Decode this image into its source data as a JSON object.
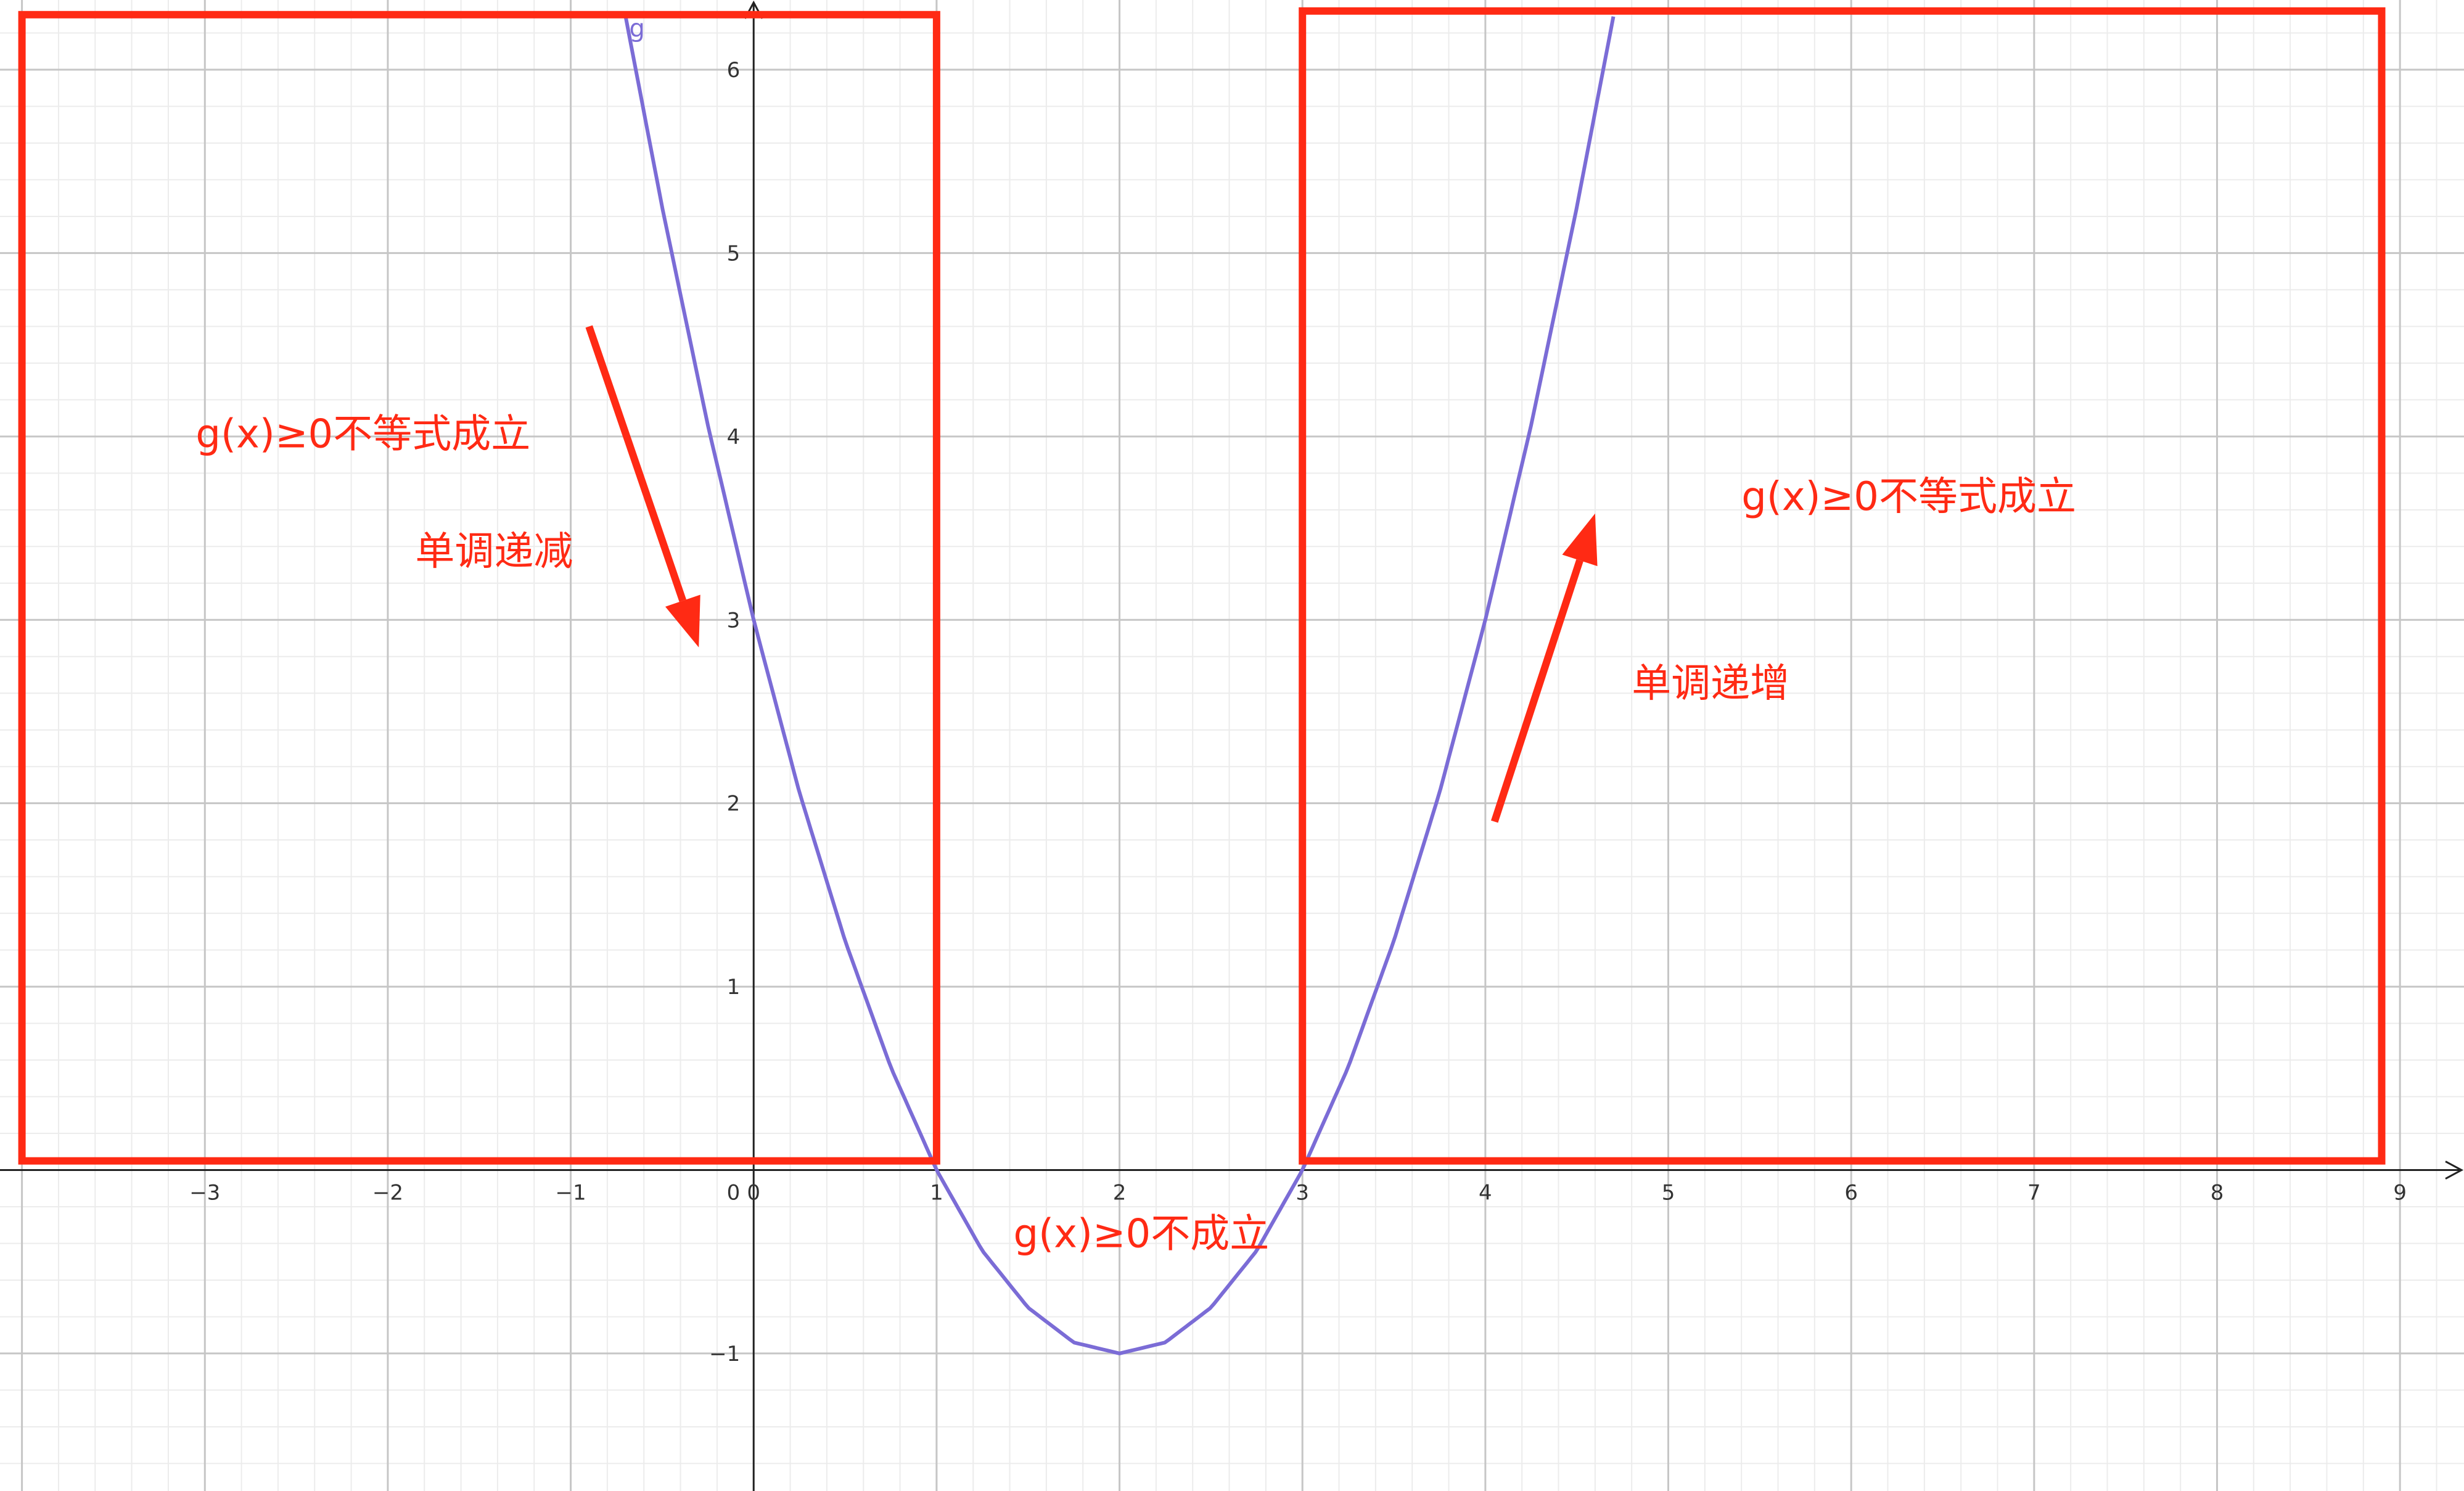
{
  "chart_data": {
    "type": "line",
    "title": "",
    "xlabel": "",
    "ylabel": "",
    "xlim": [
      -4.12,
      9.35
    ],
    "ylim": [
      -1.75,
      6.38
    ],
    "grid": true,
    "x_ticks": [
      -3,
      -2,
      -1,
      0,
      1,
      2,
      3,
      4,
      5,
      6,
      7,
      8,
      9
    ],
    "y_ticks": [
      -1,
      1,
      2,
      3,
      4,
      5,
      6
    ],
    "origin_label": "0",
    "series": [
      {
        "name": "g",
        "color": "#7b6cd6",
        "x": [
          -0.7,
          -0.5,
          -0.25,
          0,
          0.25,
          0.5,
          0.75,
          1,
          1.25,
          1.5,
          1.75,
          2,
          2.25,
          2.5,
          2.75,
          3,
          3.25,
          3.5,
          3.75,
          4,
          4.25,
          4.5,
          4.7
        ],
        "y": [
          6.29,
          5.25,
          4.06,
          3,
          2.06,
          1.25,
          0.56,
          0,
          -0.44,
          -0.75,
          -0.94,
          -1,
          -0.94,
          -0.75,
          -0.44,
          0,
          0.56,
          1.25,
          2.06,
          3,
          4.06,
          5.25,
          6.29
        ]
      }
    ],
    "regions": [
      {
        "name": "left-true-region",
        "x": [
          -4.0,
          1.0
        ],
        "y": [
          0.05,
          6.3
        ],
        "color": "#ff2a14"
      },
      {
        "name": "right-true-region",
        "x": [
          3.0,
          8.9
        ],
        "y": [
          0.05,
          6.32
        ],
        "color": "#ff2a14"
      }
    ],
    "arrows": [
      {
        "name": "decreasing-arrow",
        "from": [
          -0.9,
          4.6
        ],
        "to": [
          -0.3,
          2.85
        ],
        "color": "#ff2a14"
      },
      {
        "name": "increasing-arrow",
        "from": [
          4.05,
          1.9
        ],
        "to": [
          4.6,
          3.58
        ],
        "color": "#ff2a14"
      }
    ],
    "annotations": [
      {
        "name": "left-holds-label",
        "text": "g(x)≥0不等式成立",
        "x": -3.05,
        "y": 3.94
      },
      {
        "name": "decreasing-label",
        "text": "单调递减",
        "x": -1.85,
        "y": 3.3
      },
      {
        "name": "middle-fails-label",
        "text": "g(x)≥0不成立",
        "x": 1.42,
        "y": -0.42
      },
      {
        "name": "right-holds-label",
        "text": "g(x)≥0不等式成立",
        "x": 5.4,
        "y": 3.6
      },
      {
        "name": "increasing-label",
        "text": "单调递增",
        "x": 4.8,
        "y": 2.58
      }
    ],
    "annotation_color": "#ff2a14",
    "curve_label": {
      "text": "g",
      "x": -0.68,
      "y": 6.18
    },
    "colors": {
      "major_grid": "#c6c6c6",
      "minor_grid": "#ececec",
      "axis": "#222222",
      "curve": "#7b6cd6",
      "highlight": "#ff2a14"
    }
  }
}
